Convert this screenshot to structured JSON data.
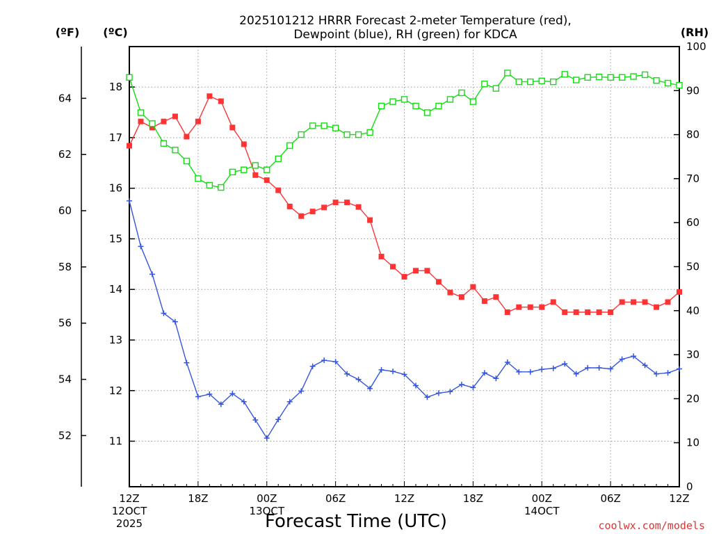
{
  "chart_data": {
    "type": "line",
    "title": "2025101212 HRRR Forecast 2-meter Temperature (red),\nDewpoint (blue), RH (green) for KDCA",
    "xlabel": "Forecast Time (UTC)",
    "units": {
      "fahrenheit": "(ºF)",
      "celsius": "(ºC)",
      "rh": "(RH)"
    },
    "x_ticks": [
      {
        "hour": 0,
        "lines": [
          "12Z",
          "12OCT",
          "2025"
        ]
      },
      {
        "hour": 6,
        "lines": [
          "18Z"
        ]
      },
      {
        "hour": 12,
        "lines": [
          "00Z",
          "13OCT"
        ]
      },
      {
        "hour": 18,
        "lines": [
          "06Z"
        ]
      },
      {
        "hour": 24,
        "lines": [
          "12Z"
        ]
      },
      {
        "hour": 30,
        "lines": [
          "18Z"
        ]
      },
      {
        "hour": 36,
        "lines": [
          "00Z",
          "14OCT"
        ]
      },
      {
        "hour": 42,
        "lines": [
          "06Z"
        ]
      },
      {
        "hour": 48,
        "lines": [
          "12Z"
        ]
      }
    ],
    "xlim": [
      0,
      48
    ],
    "celsius_axis": {
      "ylim": [
        10.1,
        18.8
      ],
      "ticks": [
        11,
        12,
        13,
        14,
        15,
        16,
        17,
        18
      ]
    },
    "fahrenheit_axis": {
      "ylim": [
        50.18,
        65.84
      ],
      "ticks": [
        52,
        54,
        56,
        58,
        60,
        62,
        64
      ]
    },
    "rh_axis": {
      "ylim": [
        0,
        100
      ],
      "ticks": [
        0,
        10,
        20,
        30,
        40,
        50,
        60,
        70,
        80,
        90,
        100
      ]
    },
    "grid": true,
    "series": [
      {
        "name": "Temperature",
        "axis": "celsius",
        "color": "#ff3333",
        "marker": "filled-square",
        "values": [
          16.84,
          17.32,
          17.2,
          17.32,
          17.42,
          17.02,
          17.32,
          17.82,
          17.72,
          17.2,
          16.87,
          16.26,
          16.16,
          15.96,
          15.64,
          15.45,
          15.54,
          15.62,
          15.72,
          15.72,
          15.63,
          15.37,
          14.65,
          14.45,
          14.25,
          14.37,
          14.37,
          14.15,
          13.94,
          13.85,
          14.05,
          13.77,
          13.85,
          13.55,
          13.65,
          13.65,
          13.65,
          13.75,
          13.55,
          13.55,
          13.55,
          13.55,
          13.55,
          13.75,
          13.75,
          13.75,
          13.65,
          13.75,
          13.95
        ]
      },
      {
        "name": "Dewpoint",
        "axis": "celsius",
        "color": "#3355dd",
        "marker": "plus",
        "values": [
          15.75,
          14.85,
          14.3,
          13.53,
          13.36,
          12.55,
          11.88,
          11.93,
          11.73,
          11.94,
          11.78,
          11.42,
          11.06,
          11.43,
          11.78,
          11.99,
          12.48,
          12.6,
          12.57,
          12.33,
          12.22,
          12.04,
          12.41,
          12.38,
          12.32,
          12.1,
          11.87,
          11.95,
          11.98,
          12.12,
          12.06,
          12.35,
          12.24,
          12.56,
          12.37,
          12.37,
          12.42,
          12.44,
          12.53,
          12.33,
          12.45,
          12.45,
          12.43,
          12.62,
          12.68,
          12.5,
          12.33,
          12.35,
          12.43
        ]
      },
      {
        "name": "RH",
        "axis": "rh",
        "color": "#11dd11",
        "marker": "open-square",
        "values": [
          93,
          85,
          82.5,
          78,
          76.5,
          74,
          70,
          68.5,
          68,
          71.5,
          72,
          73,
          72,
          74.5,
          77.5,
          80,
          82,
          82,
          81.5,
          80,
          80,
          80.5,
          86.5,
          87.5,
          88,
          86.5,
          85,
          86.5,
          88,
          89.5,
          87.5,
          91.5,
          90.5,
          94,
          92,
          92,
          92.2,
          92,
          93.7,
          92.4,
          93,
          93.1,
          93,
          93,
          93.2,
          93.6,
          92.3,
          91.7,
          91.2
        ]
      }
    ]
  },
  "credit": "coolwx.com/models"
}
